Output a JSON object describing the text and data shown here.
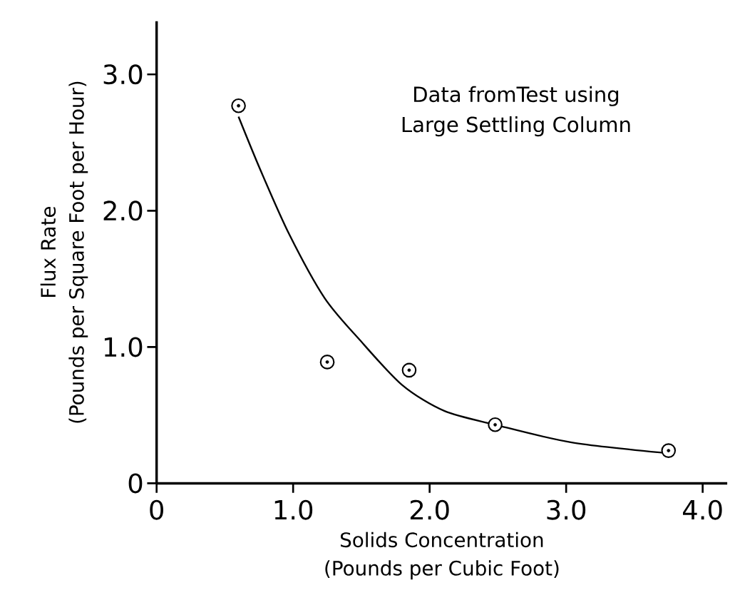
{
  "chart_data": {
    "type": "scatter",
    "xlabel": "Solids Concentration (Pounds per Cubic Foot)",
    "ylabel": "Flux Rate (Pounds per Square Foot per Hour)",
    "annotations": [
      "Data fromTest using Large Settling Column"
    ],
    "series": [
      {
        "color": "#000000",
        "marker": "circle",
        "x": [
          0.6,
          1.25,
          1.85,
          2.48,
          3.75
        ],
        "values": [
          2.77,
          0.89,
          0.83,
          0.43,
          0.24
        ]
      },
      {
        "type": "line",
        "color": "#000000",
        "marker": "none",
        "line_style": "solid",
        "x": [
          0.6,
          0.76,
          0.97,
          1.23,
          1.49,
          1.8,
          2.11,
          2.48,
          3.04,
          3.75
        ],
        "values": [
          2.69,
          2.3,
          1.83,
          1.36,
          1.05,
          0.72,
          0.53,
          0.43,
          0.3,
          0.22
        ]
      }
    ],
    "xlim": [
      0,
      4.18
    ],
    "ylim": [
      0,
      3.39
    ],
    "xticks": [
      {
        "value": 0,
        "label": "0"
      },
      {
        "value": 1,
        "label": "1.0"
      },
      {
        "value": 2,
        "label": "2.0"
      },
      {
        "value": 3,
        "label": "3.0"
      },
      {
        "value": 4,
        "label": "4.0"
      }
    ],
    "yticks": [
      {
        "value": 0,
        "label": "0"
      },
      {
        "value": 1,
        "label": "1.0"
      },
      {
        "value": 2,
        "label": "2.0"
      },
      {
        "value": 3,
        "label": "3.0"
      }
    ],
    "grid": false
  }
}
